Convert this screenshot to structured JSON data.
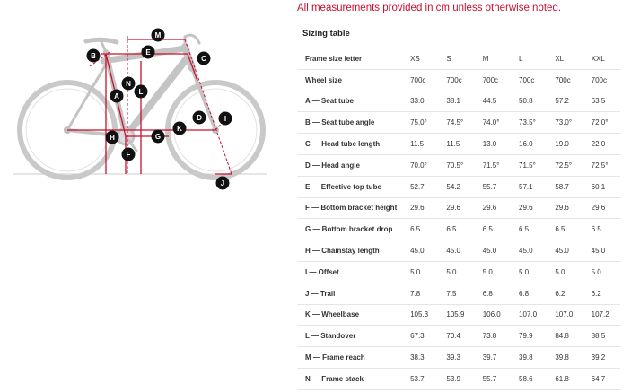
{
  "notice": "All measurements provided in cm unless otherwise noted.",
  "table_title": "Sizing table",
  "columns": [
    "Frame size letter",
    "XS",
    "S",
    "M",
    "L",
    "XL",
    "XXL"
  ],
  "rows": [
    {
      "label": "Wheel size",
      "values": [
        "700c",
        "700c",
        "700c",
        "700c",
        "700c",
        "700c"
      ]
    },
    {
      "label": "A — Seat tube",
      "values": [
        "33.0",
        "38.1",
        "44.5",
        "50.8",
        "57.2",
        "63.5"
      ]
    },
    {
      "label": "B — Seat tube angle",
      "values": [
        "75.0°",
        "74.5°",
        "74.0°",
        "73.5°",
        "73.0°",
        "72.0°"
      ]
    },
    {
      "label": "C — Head tube length",
      "values": [
        "11.5",
        "11.5",
        "13.0",
        "16.0",
        "19.0",
        "22.0"
      ]
    },
    {
      "label": "D — Head angle",
      "values": [
        "70.0°",
        "70.5°",
        "71.5°",
        "71.5°",
        "72.5°",
        "72.5°"
      ]
    },
    {
      "label": "E — Effective top tube",
      "values": [
        "52.7",
        "54.2",
        "55.7",
        "57.1",
        "58.7",
        "60.1"
      ]
    },
    {
      "label": "F — Bottom bracket height",
      "values": [
        "29.6",
        "29.6",
        "29.6",
        "29.6",
        "29.6",
        "29.6"
      ]
    },
    {
      "label": "G — Bottom bracket drop",
      "values": [
        "6.5",
        "6.5",
        "6.5",
        "6.5",
        "6.5",
        "6.5"
      ]
    },
    {
      "label": "H — Chainstay length",
      "values": [
        "45.0",
        "45.0",
        "45.0",
        "45.0",
        "45.0",
        "45.0"
      ]
    },
    {
      "label": "I — Offset",
      "values": [
        "5.0",
        "5.0",
        "5.0",
        "5.0",
        "5.0",
        "5.0"
      ]
    },
    {
      "label": "J — Trail",
      "values": [
        "7.8",
        "7.5",
        "6.8",
        "6.8",
        "6.2",
        "6.2"
      ]
    },
    {
      "label": "K — Wheelbase",
      "values": [
        "105.3",
        "105.9",
        "106.0",
        "107.0",
        "107.0",
        "107.2"
      ]
    },
    {
      "label": "L — Standover",
      "values": [
        "67.3",
        "70.4",
        "73.8",
        "79.9",
        "84.8",
        "88.5"
      ]
    },
    {
      "label": "M — Frame reach",
      "values": [
        "38.3",
        "39.3",
        "39.7",
        "39.8",
        "39.8",
        "39.2"
      ]
    },
    {
      "label": "N — Frame stack",
      "values": [
        "53.7",
        "53.9",
        "55.7",
        "58.6",
        "61.8",
        "64.7"
      ]
    }
  ],
  "diagram_tags": [
    "M",
    "E",
    "B",
    "C",
    "N",
    "L",
    "A",
    "D",
    "I",
    "K",
    "H",
    "G",
    "F",
    "J"
  ],
  "colors": {
    "accent": "#c8102e",
    "frame": "#c4c4c4",
    "tag": "#111111"
  }
}
